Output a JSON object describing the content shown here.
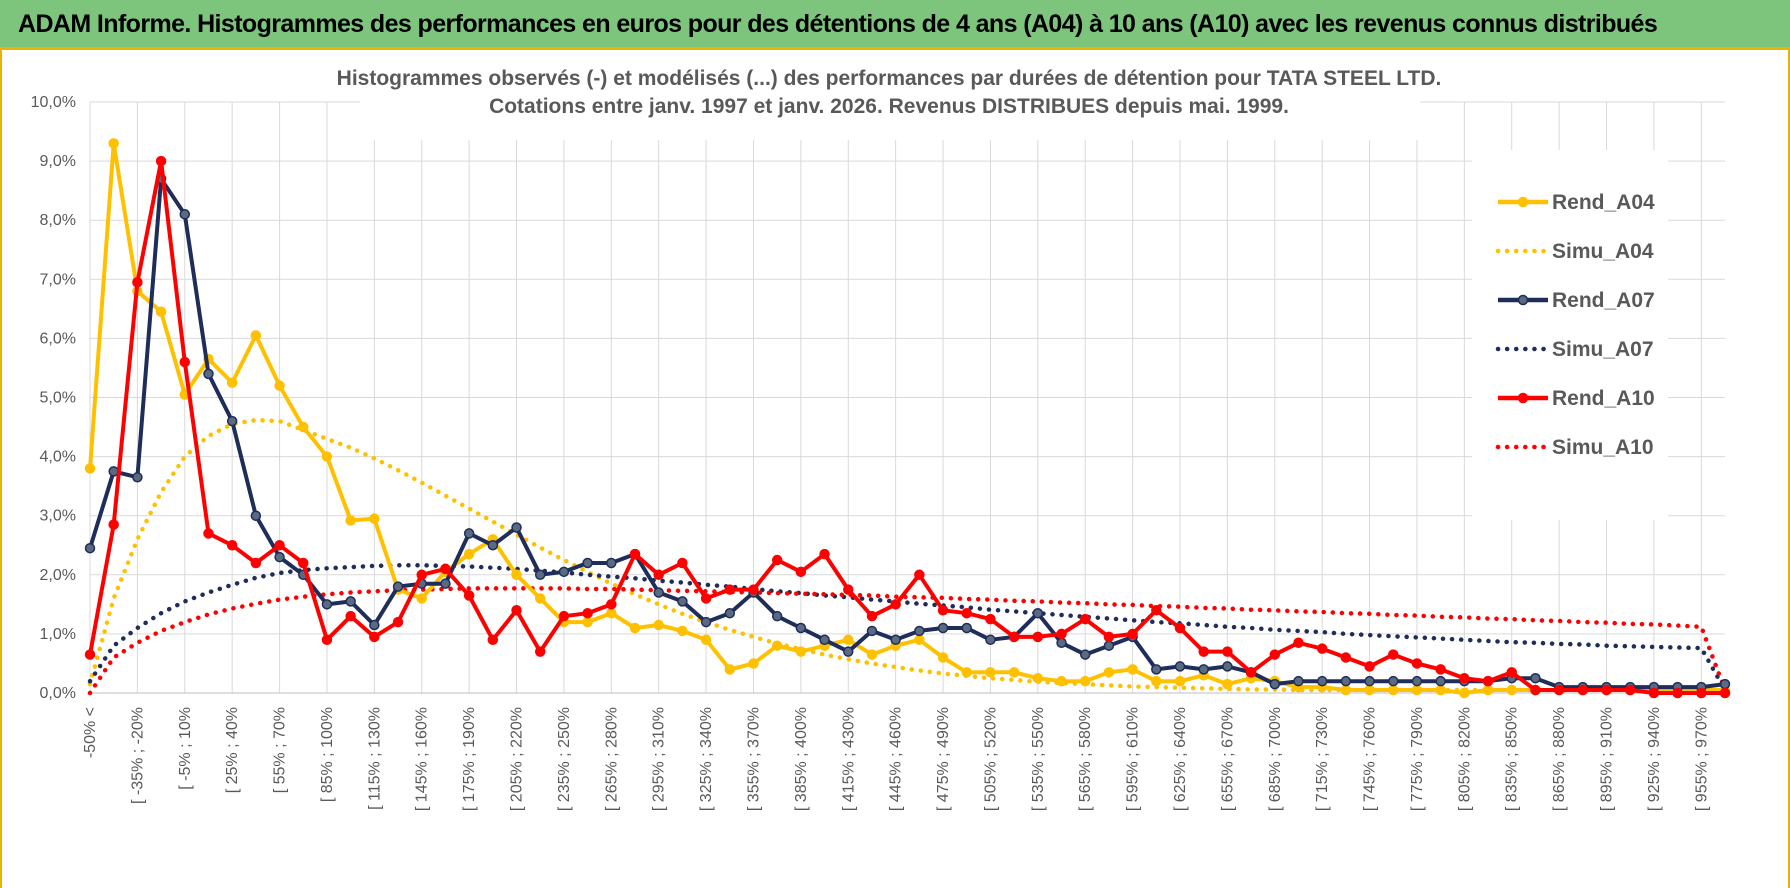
{
  "banner": {
    "title": "ADAM Informe. Histogrammes des performances en euros pour des détentions de 4 ans (A04) à 10 ans (A10) avec les revenus connus distribués"
  },
  "chart_data": {
    "type": "line",
    "title": "Histogrammes observés (-) et modélisés (...) des performances par durées de détention pour TATA STEEL LTD.",
    "subtitle": "Cotations entre janv. 1997 et janv. 2026. Revenus DISTRIBUES depuis mai. 1999.",
    "xlabel": "",
    "ylabel": "",
    "ylim": [
      0,
      10
    ],
    "grid": true,
    "legend_position": "right",
    "y_ticks": [
      "0,0%",
      "1,0%",
      "2,0%",
      "3,0%",
      "4,0%",
      "5,0%",
      "6,0%",
      "7,0%",
      "8,0%",
      "9,0%",
      "10,0%"
    ],
    "x_tick_labels": [
      "-50% <",
      "[ -35% ; -20%",
      "[ -5% ; 10%",
      "[ 25% ; 40%",
      "[ 55% ; 70%",
      "[ 85% ; 100%",
      "[ 115% ; 130%",
      "[ 145% ; 160%",
      "[ 175% ; 190%",
      "[ 205% ; 220%",
      "[ 235% ; 250%",
      "[ 265% ; 280%",
      "[ 295% ; 310%",
      "[ 325% ; 340%",
      "[ 355% ; 370%",
      "[ 385% ; 400%",
      "[ 415% ; 430%",
      "[ 445% ; 460%",
      "[ 475% ; 490%",
      "[ 505% ; 520%",
      "[ 535% ; 550%",
      "[ 565% ; 580%",
      "[ 595% ; 610%",
      "[ 625% ; 640%",
      "[ 655% ; 670%",
      "[ 685% ; 700%",
      "[ 715% ; 730%",
      "[ 745% ; 760%",
      "[ 775% ; 790%",
      "[ 805% ; 820%",
      "[ 835% ; 850%",
      "[ 865% ; 880%",
      "[ 895% ; 910%",
      "[ 925% ; 940%",
      "[ 955% ; 970%"
    ],
    "series": [
      {
        "name": "Rend_A04",
        "style": "solid",
        "color": "#ffc000",
        "values": [
          3.8,
          9.3,
          6.8,
          6.45,
          5.05,
          5.65,
          5.25,
          6.05,
          5.2,
          4.5,
          4.0,
          2.92,
          2.95,
          1.75,
          1.6,
          2.05,
          2.35,
          2.6,
          2.0,
          1.6,
          1.2,
          1.2,
          1.35,
          1.1,
          1.15,
          1.05,
          0.9,
          0.4,
          0.5,
          0.8,
          0.7,
          0.8,
          0.9,
          0.65,
          0.8,
          0.9,
          0.6,
          0.35,
          0.35,
          0.35,
          0.25,
          0.2,
          0.2,
          0.35,
          0.4,
          0.2,
          0.2,
          0.3,
          0.15,
          0.25,
          0.2,
          0.1,
          0.1,
          0.05,
          0.05,
          0.05,
          0.05,
          0.05,
          0.0,
          0.05,
          0.05,
          0.05,
          0.05,
          0.05,
          0.05,
          0.05,
          0.05,
          0.05,
          0.05,
          0.05
        ]
      },
      {
        "name": "Simu_A04",
        "style": "dotted",
        "color": "#ffc000",
        "values": [
          0.15,
          1.6,
          2.6,
          3.4,
          4.0,
          4.35,
          4.55,
          4.62,
          4.6,
          4.45,
          4.3,
          4.15,
          3.97,
          3.77,
          3.56,
          3.34,
          3.12,
          2.9,
          2.68,
          2.46,
          2.25,
          2.05,
          1.85,
          1.67,
          1.5,
          1.34,
          1.2,
          1.07,
          0.95,
          0.84,
          0.74,
          0.65,
          0.57,
          0.5,
          0.44,
          0.38,
          0.33,
          0.29,
          0.25,
          0.22,
          0.19,
          0.17,
          0.15,
          0.13,
          0.11,
          0.1,
          0.09,
          0.08,
          0.07,
          0.06,
          0.06,
          0.05,
          0.05,
          0.05,
          0.05,
          0.05,
          0.05,
          0.05,
          0.05,
          0.05,
          0.05,
          0.05,
          0.05,
          0.05,
          0.05,
          0.05,
          0.05,
          0.05,
          0.05,
          0.03
        ]
      },
      {
        "name": "Rend_A07",
        "style": "solid",
        "color": "#1f2d5a",
        "values": [
          2.45,
          3.75,
          3.65,
          8.7,
          8.1,
          5.4,
          4.6,
          3.0,
          2.3,
          2.0,
          1.5,
          1.55,
          1.15,
          1.8,
          1.85,
          1.85,
          2.7,
          2.5,
          2.8,
          2.0,
          2.05,
          2.2,
          2.2,
          2.35,
          1.7,
          1.55,
          1.2,
          1.35,
          1.7,
          1.3,
          1.1,
          0.9,
          0.7,
          1.05,
          0.9,
          1.05,
          1.1,
          1.1,
          0.9,
          0.95,
          1.35,
          0.85,
          0.65,
          0.8,
          0.95,
          0.4,
          0.45,
          0.4,
          0.45,
          0.35,
          0.15,
          0.2,
          0.2,
          0.2,
          0.2,
          0.2,
          0.2,
          0.2,
          0.2,
          0.2,
          0.25,
          0.25,
          0.1,
          0.1,
          0.1,
          0.1,
          0.1,
          0.1,
          0.1,
          0.15
        ]
      },
      {
        "name": "Simu_A07",
        "style": "dotted",
        "color": "#1f2d5a",
        "values": [
          0.2,
          0.8,
          1.1,
          1.35,
          1.55,
          1.7,
          1.83,
          1.95,
          2.03,
          2.08,
          2.11,
          2.13,
          2.15,
          2.16,
          2.16,
          2.15,
          2.14,
          2.12,
          2.1,
          2.07,
          2.04,
          2.0,
          1.97,
          1.94,
          1.9,
          1.87,
          1.83,
          1.8,
          1.76,
          1.72,
          1.69,
          1.65,
          1.62,
          1.58,
          1.55,
          1.51,
          1.48,
          1.45,
          1.41,
          1.38,
          1.35,
          1.32,
          1.29,
          1.26,
          1.23,
          1.2,
          1.18,
          1.15,
          1.12,
          1.1,
          1.07,
          1.05,
          1.03,
          1.0,
          0.98,
          0.96,
          0.94,
          0.92,
          0.9,
          0.88,
          0.86,
          0.85,
          0.83,
          0.82,
          0.8,
          0.79,
          0.78,
          0.77,
          0.76,
          0.05
        ]
      },
      {
        "name": "Rend_A10",
        "style": "solid",
        "color": "#ff0000",
        "values": [
          0.65,
          2.85,
          6.95,
          9.0,
          5.6,
          2.7,
          2.5,
          2.2,
          2.5,
          2.2,
          0.9,
          1.3,
          0.95,
          1.2,
          2.0,
          2.1,
          1.65,
          0.9,
          1.4,
          0.7,
          1.3,
          1.35,
          1.5,
          2.35,
          2.0,
          2.2,
          1.6,
          1.75,
          1.75,
          2.25,
          2.05,
          2.35,
          1.75,
          1.3,
          1.5,
          2.0,
          1.4,
          1.35,
          1.25,
          0.95,
          0.95,
          1.0,
          1.25,
          0.95,
          1.0,
          1.4,
          1.1,
          0.7,
          0.7,
          0.35,
          0.65,
          0.85,
          0.75,
          0.6,
          0.45,
          0.65,
          0.5,
          0.4,
          0.25,
          0.2,
          0.35,
          0.05,
          0.05,
          0.05,
          0.05,
          0.05,
          0.0,
          0.0,
          0.0,
          0.0
        ]
      },
      {
        "name": "Simu_A10",
        "style": "dotted",
        "color": "#ff0000",
        "values": [
          0.0,
          0.6,
          0.85,
          1.05,
          1.2,
          1.33,
          1.43,
          1.51,
          1.58,
          1.63,
          1.67,
          1.7,
          1.72,
          1.74,
          1.75,
          1.76,
          1.77,
          1.77,
          1.77,
          1.77,
          1.77,
          1.76,
          1.76,
          1.75,
          1.74,
          1.73,
          1.72,
          1.71,
          1.7,
          1.69,
          1.68,
          1.67,
          1.66,
          1.65,
          1.63,
          1.62,
          1.61,
          1.59,
          1.58,
          1.56,
          1.55,
          1.53,
          1.52,
          1.5,
          1.49,
          1.47,
          1.46,
          1.44,
          1.43,
          1.41,
          1.4,
          1.38,
          1.37,
          1.35,
          1.34,
          1.32,
          1.31,
          1.29,
          1.28,
          1.26,
          1.25,
          1.23,
          1.22,
          1.2,
          1.19,
          1.17,
          1.16,
          1.14,
          1.12,
          0.05
        ]
      }
    ]
  }
}
